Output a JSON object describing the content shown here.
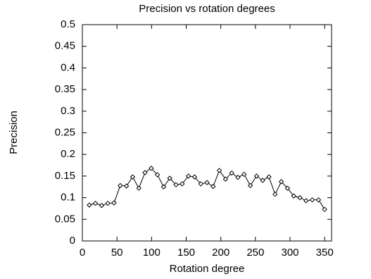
{
  "chart_data": {
    "type": "line",
    "title": "Precision vs rotation degrees",
    "x_label": "Rotation degree",
    "y_label": "Precision",
    "x": [
      10,
      18.9,
      27.9,
      36.8,
      45.8,
      54.7,
      63.7,
      72.6,
      81.6,
      90.5,
      99.5,
      108.4,
      117.4,
      126.3,
      135.3,
      144.2,
      153.2,
      162.1,
      171.1,
      180,
      188.9,
      197.9,
      206.8,
      215.8,
      224.7,
      233.7,
      242.6,
      251.6,
      260.5,
      269.5,
      278.4,
      287.4,
      296.3,
      305.3,
      314.2,
      323.2,
      332.1,
      341.1,
      350
    ],
    "series": [
      {
        "color": "#000000",
        "values": [
          0.083,
          0.087,
          0.082,
          0.087,
          0.088,
          0.128,
          0.127,
          0.148,
          0.122,
          0.158,
          0.168,
          0.153,
          0.125,
          0.145,
          0.13,
          0.132,
          0.15,
          0.148,
          0.132,
          0.135,
          0.126,
          0.163,
          0.143,
          0.157,
          0.147,
          0.154,
          0.128,
          0.15,
          0.14,
          0.148,
          0.108,
          0.137,
          0.122,
          0.104,
          0.1,
          0.093,
          0.095,
          0.095,
          0.073
        ]
      }
    ],
    "xlim": [
      0,
      360
    ],
    "xticks": [
      0,
      50,
      100,
      150,
      200,
      250,
      300,
      350
    ],
    "ylim": [
      0,
      0.5
    ],
    "yticks": [
      0,
      0.05,
      0.1,
      0.15,
      0.2,
      0.25,
      0.3,
      0.35,
      0.4,
      0.45,
      0.5
    ],
    "grid": false
  }
}
